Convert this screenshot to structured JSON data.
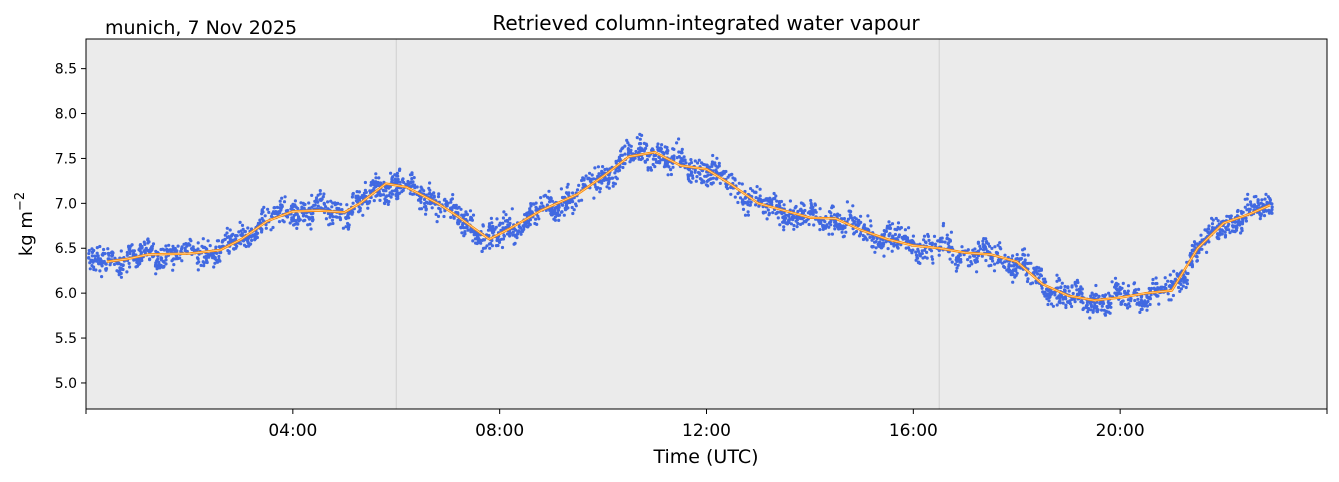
{
  "chart_data": {
    "type": "scatter",
    "title": "Retrieved column-integrated water vapour",
    "subtitle": "munich, 7 Nov 2025",
    "xlabel": "Time (UTC)",
    "ylabel": "kg m",
    "ylabel_superscript": "−2",
    "xlim": [
      0,
      24
    ],
    "ylim": [
      4.71,
      8.83
    ],
    "x_ticks": [
      {
        "value": 0,
        "label": ""
      },
      {
        "value": 4,
        "label": "04:00"
      },
      {
        "value": 8,
        "label": "08:00"
      },
      {
        "value": 12,
        "label": "12:00"
      },
      {
        "value": 16,
        "label": "16:00"
      },
      {
        "value": 20,
        "label": "20:00"
      },
      {
        "value": 24,
        "label": ""
      }
    ],
    "y_ticks": [
      {
        "value": 5.0,
        "label": "5.0"
      },
      {
        "value": 5.5,
        "label": "5.5"
      },
      {
        "value": 6.0,
        "label": "6.0"
      },
      {
        "value": 6.5,
        "label": "6.5"
      },
      {
        "value": 7.0,
        "label": "7.0"
      },
      {
        "value": 7.5,
        "label": "7.5"
      },
      {
        "value": 8.0,
        "label": "8.0"
      },
      {
        "value": 8.5,
        "label": "8.5"
      }
    ],
    "vertical_lines_hours": [
      6.0,
      16.5
    ],
    "grid": false,
    "colors": {
      "background": "#ebebeb",
      "scatter": "#4169e1",
      "smooth": "#ff8c00",
      "vline": "#d0d0d0"
    },
    "series": [
      {
        "name": "smoothed",
        "x": [
          0.4,
          0.8,
          1.2,
          2.0,
          2.6,
          3.0,
          3.5,
          4.0,
          4.5,
          5.0,
          5.3,
          5.8,
          6.2,
          6.8,
          7.2,
          7.8,
          8.2,
          8.8,
          9.5,
          10.0,
          10.5,
          11.0,
          11.5,
          12.0,
          12.5,
          13.0,
          13.5,
          14.0,
          14.5,
          15.0,
          15.5,
          16.0,
          16.5,
          17.0,
          17.5,
          18.0,
          18.5,
          19.0,
          19.5,
          20.0,
          20.5,
          21.0,
          21.5,
          22.0,
          22.5,
          22.9
        ],
        "y": [
          6.35,
          6.38,
          6.43,
          6.44,
          6.48,
          6.6,
          6.8,
          6.91,
          6.92,
          6.9,
          7.0,
          7.22,
          7.18,
          7.0,
          6.85,
          6.6,
          6.72,
          6.92,
          7.1,
          7.3,
          7.52,
          7.57,
          7.42,
          7.38,
          7.2,
          7.0,
          6.92,
          6.84,
          6.83,
          6.7,
          6.6,
          6.53,
          6.5,
          6.45,
          6.43,
          6.35,
          6.1,
          5.97,
          5.92,
          5.95,
          6.0,
          6.03,
          6.5,
          6.78,
          6.88,
          6.98
        ]
      },
      {
        "name": "retrievals",
        "spread": 0.13,
        "x_range": [
          0.05,
          22.95
        ]
      }
    ]
  }
}
